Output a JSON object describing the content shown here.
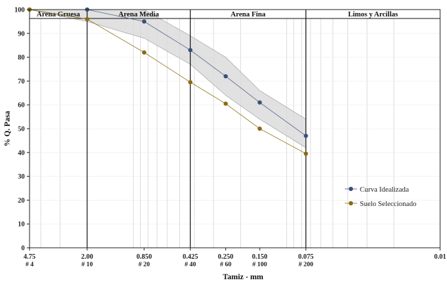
{
  "chart_data": {
    "type": "line",
    "xlabel": "Tamiz - mm",
    "ylabel": "% Q. Pasa",
    "x_scale": "log",
    "x_direction": "decreasing",
    "xlim": [
      4.75,
      0.01
    ],
    "ylim": [
      0,
      100
    ],
    "y_ticks": [
      "0",
      "10",
      "20",
      "30",
      "40",
      "50",
      "60",
      "70",
      "80",
      "90",
      "100"
    ],
    "x_ticks": [
      {
        "value": 4.75,
        "label": "4.75",
        "sublabel": "# 4"
      },
      {
        "value": 2.0,
        "label": "2.00",
        "sublabel": "# 10"
      },
      {
        "value": 0.85,
        "label": "0.850",
        "sublabel": "# 20"
      },
      {
        "value": 0.425,
        "label": "0.425",
        "sublabel": "# 40"
      },
      {
        "value": 0.25,
        "label": "0.250",
        "sublabel": "# 60"
      },
      {
        "value": 0.15,
        "label": "0.150",
        "sublabel": "# 100"
      },
      {
        "value": 0.075,
        "label": "0.075",
        "sublabel": "# 200"
      },
      {
        "value": 0.01,
        "label": "0.01",
        "sublabel": ""
      }
    ],
    "zones": [
      {
        "label": "Arena Gruesa",
        "from": 4.75,
        "to": 2.0
      },
      {
        "label": "Arena Media",
        "from": 2.0,
        "to": 0.425
      },
      {
        "label": "Arena Fina",
        "from": 0.425,
        "to": 0.075
      },
      {
        "label": "Limos y Arcillas",
        "from": 0.075,
        "to": 0.01
      }
    ],
    "series": [
      {
        "name": "Curva Idealizada",
        "color": "#3b4f7a",
        "x": [
          4.75,
          2.0,
          0.85,
          0.425,
          0.25,
          0.15,
          0.075
        ],
        "values": [
          100,
          100,
          95,
          83,
          72,
          61,
          47
        ]
      },
      {
        "name": "Suelo Seleccionado",
        "color": "#8a6a12",
        "x": [
          4.75,
          2.0,
          0.85,
          0.425,
          0.25,
          0.15,
          0.075
        ],
        "values": [
          100,
          96,
          82,
          69.5,
          60.5,
          50,
          39.5
        ]
      }
    ],
    "band": {
      "color": "#d9d9d9",
      "x": [
        4.75,
        2.0,
        0.85,
        0.425,
        0.25,
        0.15,
        0.075
      ],
      "upper": [
        100,
        100,
        100,
        89,
        80,
        66,
        54
      ],
      "lower": [
        100,
        95,
        88,
        77,
        64,
        54,
        42
      ]
    },
    "grid": true,
    "legend_position": "bottom-right"
  }
}
